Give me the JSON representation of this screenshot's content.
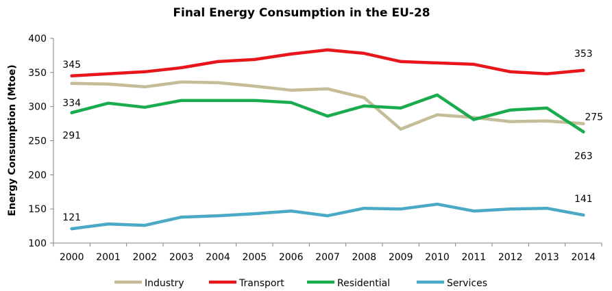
{
  "chart_data": {
    "type": "line",
    "title": "Final Energy Consumption in the EU-28",
    "xlabel": "",
    "ylabel": "Energy Consumption (Mtoe)",
    "ylim": [
      100,
      400
    ],
    "yticks": [
      100,
      150,
      200,
      250,
      300,
      350,
      400
    ],
    "categories": [
      "2000",
      "2001",
      "2002",
      "2003",
      "2004",
      "2005",
      "2006",
      "2007",
      "2008",
      "2009",
      "2010",
      "2011",
      "2012",
      "2013",
      "2014"
    ],
    "grid": false,
    "legend_position": "bottom",
    "series": [
      {
        "name": "Industry",
        "color": "#c4bd97",
        "values": [
          334,
          333,
          329,
          336,
          335,
          330,
          324,
          326,
          313,
          267,
          288,
          284,
          278,
          279,
          275
        ]
      },
      {
        "name": "Transport",
        "color": "#e8161b",
        "values": [
          345,
          348,
          351,
          357,
          366,
          369,
          377,
          383,
          378,
          366,
          364,
          362,
          351,
          348,
          353
        ]
      },
      {
        "name": "Residential",
        "color": "#1aab4f",
        "values": [
          291,
          305,
          299,
          309,
          309,
          309,
          306,
          286,
          301,
          298,
          317,
          281,
          295,
          298,
          263
        ]
      },
      {
        "name": "Services",
        "color": "#4aaac5",
        "values": [
          121,
          128,
          126,
          138,
          140,
          143,
          147,
          140,
          151,
          150,
          157,
          147,
          150,
          151,
          141
        ]
      }
    ],
    "annotations": [
      {
        "series": 1,
        "index": 0,
        "text": "345"
      },
      {
        "series": 0,
        "index": 0,
        "text": "334"
      },
      {
        "series": 2,
        "index": 0,
        "text": "291"
      },
      {
        "series": 3,
        "index": 0,
        "text": "121"
      },
      {
        "series": 1,
        "index": 14,
        "text": "353"
      },
      {
        "series": 0,
        "index": 14,
        "text": "275"
      },
      {
        "series": 2,
        "index": 14,
        "text": "263"
      },
      {
        "series": 3,
        "index": 14,
        "text": "141"
      }
    ]
  }
}
